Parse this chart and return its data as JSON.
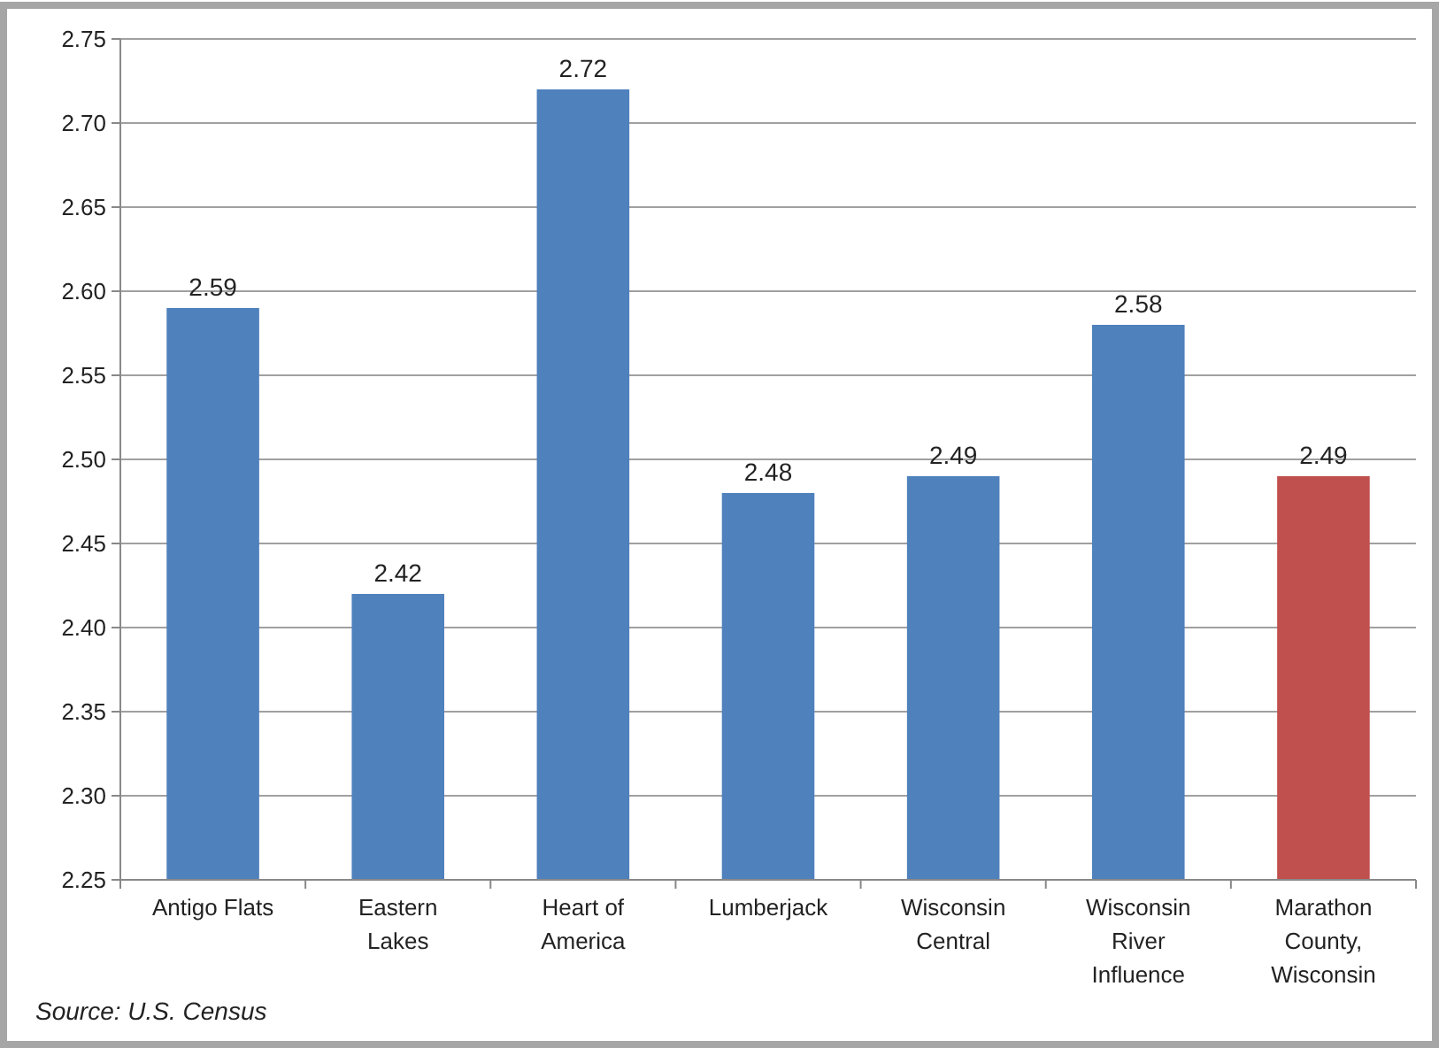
{
  "chart_data": {
    "type": "bar",
    "categories": [
      "Antigo Flats",
      "Eastern Lakes",
      "Heart of America",
      "Lumberjack",
      "Wisconsin Central",
      "Wisconsin River Influence",
      "Marathon County, Wisconsin"
    ],
    "values": [
      2.59,
      2.42,
      2.72,
      2.48,
      2.49,
      2.58,
      2.49
    ],
    "colors": [
      "#4f81bd",
      "#4f81bd",
      "#4f81bd",
      "#4f81bd",
      "#4f81bd",
      "#4f81bd",
      "#c0504d"
    ],
    "ylim": [
      2.25,
      2.75
    ],
    "yticks": [
      {
        "value": 2.25,
        "label": "2.25"
      },
      {
        "value": 2.3,
        "label": "2.30"
      },
      {
        "value": 2.35,
        "label": "2.35"
      },
      {
        "value": 2.4,
        "label": "2.40"
      },
      {
        "value": 2.45,
        "label": "2.45"
      },
      {
        "value": 2.5,
        "label": "2.50"
      },
      {
        "value": 2.55,
        "label": "2.55"
      },
      {
        "value": 2.6,
        "label": "2.60"
      },
      {
        "value": 2.65,
        "label": "2.65"
      },
      {
        "value": 2.7,
        "label": "2.70"
      },
      {
        "value": 2.75,
        "label": "2.75"
      }
    ],
    "grid": "y",
    "data_labels": true,
    "annotations": [
      "Source: U.S. Census"
    ]
  }
}
